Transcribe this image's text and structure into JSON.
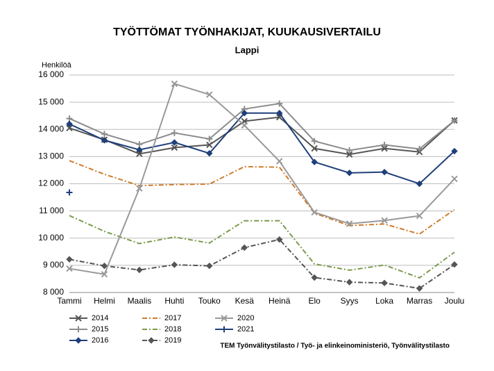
{
  "chart_data": {
    "type": "line",
    "title": "TYÖTTÖMAT TYÖNHAKIJAT, KUUKAUSIVERTAILU",
    "subtitle": "Lappi",
    "y_label": "Henkilöä",
    "source": "TEM Työnvälitystilasto / Työ- ja elinkeinoministeriö, Työnvälitystilasto",
    "categories": [
      "Tammi",
      "Helmi",
      "Maalis",
      "Huhti",
      "Touko",
      "Kesä",
      "Heinä",
      "Elo",
      "Syys",
      "Loka",
      "Marras",
      "Joulu"
    ],
    "ylim": [
      8000,
      16000
    ],
    "yticks": [
      {
        "value": 8000,
        "label": "8 000"
      },
      {
        "value": 9000,
        "label": "9 000"
      },
      {
        "value": 10000,
        "label": "10 000"
      },
      {
        "value": 11000,
        "label": "11 000"
      },
      {
        "value": 12000,
        "label": "12 000"
      },
      {
        "value": 13000,
        "label": "13 000"
      },
      {
        "value": 14000,
        "label": "14 000"
      },
      {
        "value": 15000,
        "label": "15 000"
      },
      {
        "value": 16000,
        "label": "16 000"
      }
    ],
    "grid": true,
    "legend": "bottom",
    "series": [
      {
        "name": "2014",
        "color": "#555555",
        "marker": "x",
        "dash": "solid",
        "values": [
          14050,
          13620,
          13100,
          13330,
          13430,
          14300,
          14450,
          13300,
          13080,
          13300,
          13170,
          14330
        ]
      },
      {
        "name": "2015",
        "color": "#8c8c8c",
        "marker": "plus",
        "dash": "solid",
        "values": [
          14400,
          13830,
          13450,
          13870,
          13650,
          14750,
          14950,
          13570,
          13230,
          13430,
          13280,
          14330
        ]
      },
      {
        "name": "2016",
        "color": "#1f3f7a",
        "marker": "diamond",
        "dash": "solid",
        "values": [
          14200,
          13600,
          13250,
          13520,
          13120,
          14600,
          14600,
          12800,
          12400,
          12430,
          12000,
          13200
        ]
      },
      {
        "name": "2017",
        "color": "#d07a2a",
        "marker": "none",
        "dash": "dashdot",
        "values": [
          12850,
          12350,
          11930,
          11970,
          11990,
          12630,
          12610,
          10920,
          10460,
          10520,
          10150,
          11050
        ]
      },
      {
        "name": "2018",
        "color": "#7a9a4a",
        "marker": "none",
        "dash": "dashdot",
        "values": [
          10830,
          10250,
          9800,
          10040,
          9820,
          10640,
          10640,
          9050,
          8820,
          9010,
          8540,
          9480
        ]
      },
      {
        "name": "2019",
        "color": "#555555",
        "marker": "diamond",
        "dash": "dashdot",
        "values": [
          9220,
          8980,
          8830,
          9020,
          8980,
          9650,
          9950,
          8550,
          8380,
          8350,
          8150,
          9030
        ]
      },
      {
        "name": "2020",
        "color": "#999999",
        "marker": "x",
        "dash": "solid",
        "values": [
          8880,
          8670,
          11830,
          15680,
          15280,
          14150,
          12830,
          10950,
          10530,
          10650,
          10820,
          12180
        ]
      },
      {
        "name": "2021",
        "color": "#1f3f7a",
        "marker": "plus",
        "dash": "solid",
        "values": [
          11680,
          null,
          null,
          null,
          null,
          null,
          null,
          null,
          null,
          null,
          null,
          null
        ]
      }
    ]
  }
}
